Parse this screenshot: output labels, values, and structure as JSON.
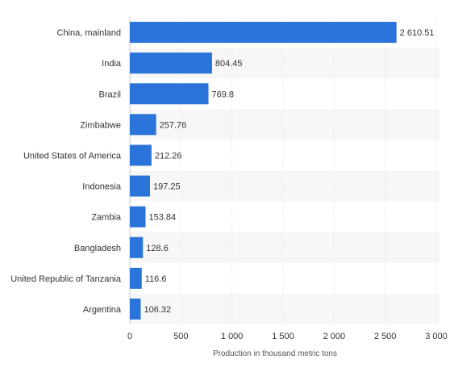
{
  "chart_data": {
    "type": "bar",
    "orientation": "horizontal",
    "categories": [
      "China, mainland",
      "India",
      "Brazil",
      "Zimbabwe",
      "United States of America",
      "Indonesia",
      "Zambia",
      "Bangladesh",
      "United Republic of Tanzania",
      "Argentina"
    ],
    "values": [
      2610.51,
      804.45,
      769.8,
      257.76,
      212.26,
      197.25,
      153.84,
      128.6,
      116.6,
      106.32
    ],
    "value_labels": [
      "2 610.51",
      "804.45",
      "769.8",
      "257.76",
      "212.26",
      "197.25",
      "153.84",
      "128.6",
      "116.6",
      "106.32"
    ],
    "title": "",
    "xlabel": "Production in thousand metric tons",
    "ylabel": "",
    "xlim": [
      0,
      3000
    ],
    "ticks": [
      0,
      500,
      1000,
      1500,
      2000,
      2500,
      3000
    ],
    "tick_labels": [
      "0",
      "500",
      "1 000",
      "1 500",
      "2 000",
      "2 500",
      "3 000"
    ],
    "grid": true,
    "legend": "none",
    "bar_color": "#2a73d9"
  }
}
